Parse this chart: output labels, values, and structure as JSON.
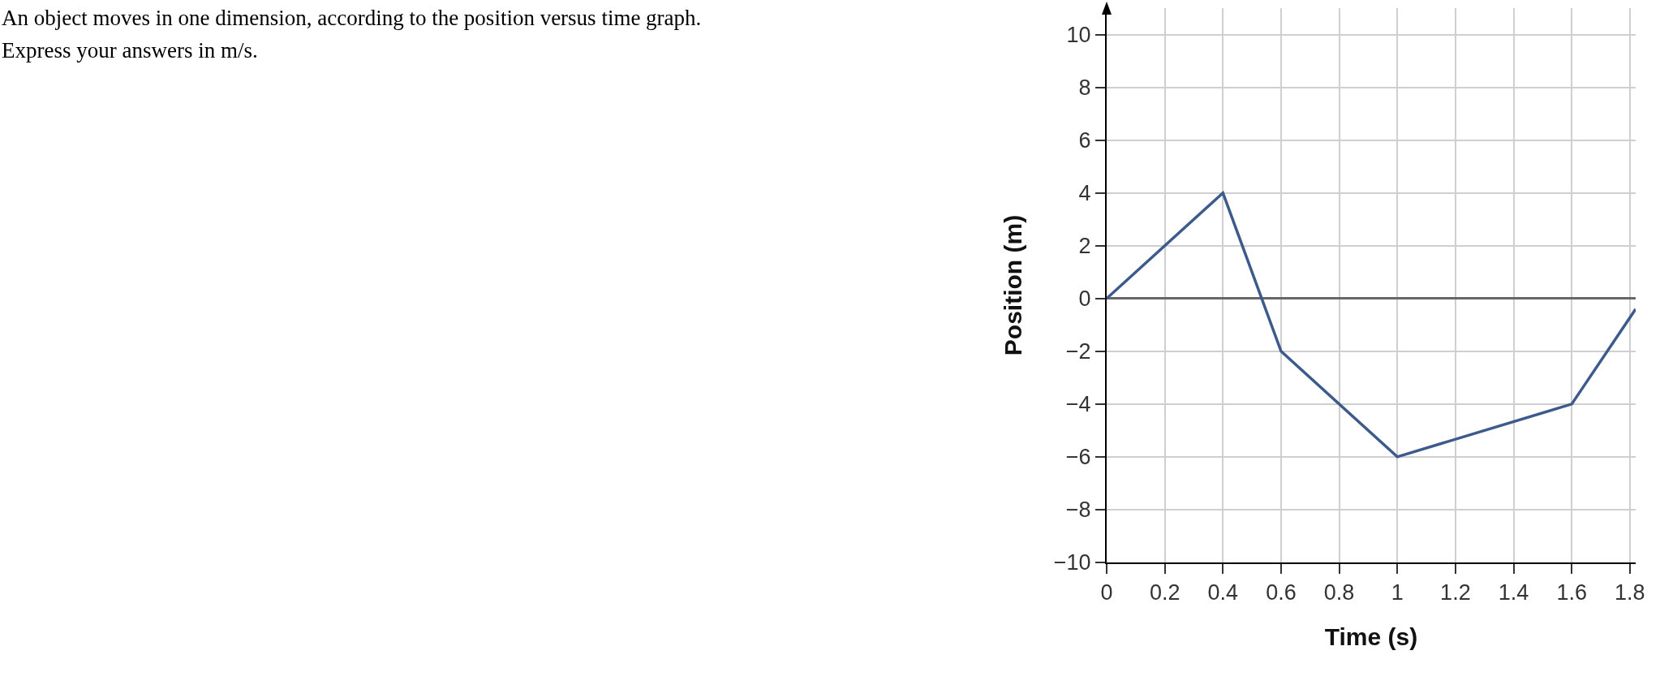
{
  "chart_data": {
    "type": "line",
    "annotations": [
      "An object moves in one dimension, according to the position versus time graph.",
      "Express your answers in m/s."
    ],
    "xlabel": "Time (s)",
    "ylabel": "Position (m)",
    "x": [
      0,
      0.4,
      0.6,
      1,
      1.6,
      1.82
    ],
    "series": [
      {
        "color": "#3d5a8c",
        "values": [
          0,
          4,
          -2,
          -6,
          -4,
          -0.4
        ]
      }
    ],
    "xlim": [
      0,
      1.82
    ],
    "xticks": [
      0,
      0.2,
      0.4,
      0.6,
      0.8,
      1,
      1.2,
      1.4,
      1.6,
      1.8
    ],
    "ylim": [
      -10,
      11
    ],
    "yticks": [
      {
        "value": -10,
        "label": "−10"
      },
      {
        "value": -8,
        "label": "−8"
      },
      {
        "value": -6,
        "label": "−6"
      },
      {
        "value": -4,
        "label": "−4"
      },
      {
        "value": -2,
        "label": "−2"
      },
      0,
      2,
      4,
      6,
      8,
      10
    ],
    "grid": true,
    "line_style": "solid"
  }
}
